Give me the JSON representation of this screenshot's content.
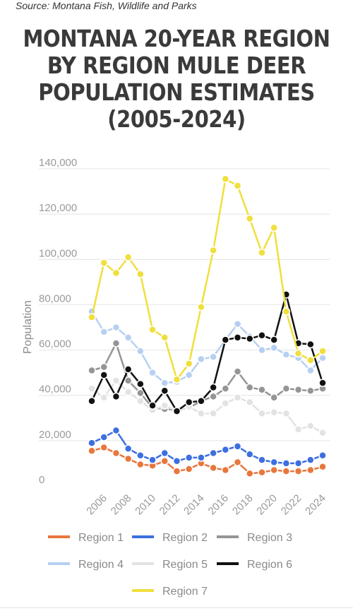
{
  "source": "Source: Montana Fish, Wildlife and Parks",
  "title": "MONTANA 20-YEAR REGION BY REGION MULE DEER POPULATION ESTIMATES (2005-2024)",
  "chart_data": {
    "type": "line",
    "title": "MONTANA 20-YEAR REGION BY REGION MULE DEER POPULATION ESTIMATES (2005-2024)",
    "ylabel": "Population",
    "xlabel": "",
    "ylim": [
      0,
      140000
    ],
    "yticks": [
      0,
      20000,
      40000,
      60000,
      80000,
      100000,
      120000,
      140000
    ],
    "ytick_labels": [
      "0",
      "20,000",
      "40,000",
      "60,000",
      "80,000",
      "100,000",
      "120,000",
      "140,000"
    ],
    "xticks": [
      2006,
      2008,
      2010,
      2012,
      2014,
      2016,
      2018,
      2020,
      2022,
      2024
    ],
    "grid": "horizontal",
    "legend_position": "bottom",
    "x": [
      2005,
      2006,
      2007,
      2008,
      2009,
      2010,
      2011,
      2012,
      2013,
      2014,
      2015,
      2016,
      2017,
      2018,
      2019,
      2020,
      2021,
      2022,
      2023,
      2024
    ],
    "series": [
      {
        "name": "Region 1",
        "color": "#e8773d",
        "values": [
          15500,
          17000,
          14500,
          12000,
          9500,
          9000,
          11000,
          6500,
          7500,
          10000,
          8000,
          7000,
          10500,
          5500,
          6000,
          7000,
          6500,
          6500,
          7000,
          8500
        ]
      },
      {
        "name": "Region 2",
        "color": "#3d6fe0",
        "values": [
          19000,
          21500,
          24500,
          16500,
          13500,
          11500,
          14500,
          11000,
          12500,
          12500,
          14500,
          16000,
          17500,
          14000,
          11500,
          10500,
          10000,
          10000,
          11500,
          13500
        ]
      },
      {
        "name": "Region 3",
        "color": "#959595",
        "values": [
          51000,
          52500,
          63000,
          46500,
          41000,
          34500,
          34000,
          33500,
          34500,
          37500,
          39500,
          43000,
          50500,
          43500,
          42500,
          39000,
          43000,
          42500,
          42000,
          43000
        ]
      },
      {
        "name": "Region 4",
        "color": "#b7d0f2",
        "values": [
          77000,
          68000,
          70000,
          65500,
          59500,
          50000,
          45500,
          46000,
          49000,
          56000,
          57000,
          64500,
          71500,
          66000,
          60000,
          61000,
          58000,
          56500,
          51000,
          56500
        ]
      },
      {
        "name": "Region 5",
        "color": "#e3e3e3",
        "values": [
          43000,
          39000,
          46500,
          41500,
          37500,
          33500,
          35500,
          33000,
          35000,
          32000,
          32000,
          36500,
          39000,
          37000,
          32000,
          32500,
          32000,
          25000,
          26500,
          23500
        ]
      },
      {
        "name": "Region 6",
        "color": "#111111",
        "values": [
          37500,
          49000,
          39500,
          51500,
          45000,
          35500,
          42000,
          33000,
          37000,
          37500,
          43500,
          64500,
          65500,
          65000,
          66500,
          64500,
          84500,
          63000,
          62500,
          45500
        ]
      },
      {
        "name": "Region 7",
        "color": "#f0df3c",
        "values": [
          74500,
          98500,
          94000,
          101000,
          93500,
          69000,
          65500,
          47000,
          54000,
          79000,
          104000,
          135500,
          132500,
          118000,
          103000,
          114000,
          77000,
          58500,
          55500,
          59500
        ]
      }
    ]
  }
}
